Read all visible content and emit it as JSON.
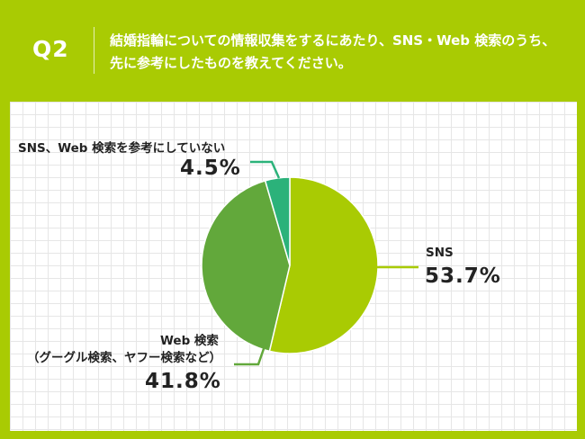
{
  "header": {
    "question_no": "Q2",
    "question_text": "結婚指輪についての情報収集をするにあたり、SNS・Web 検索のうち、先に参考にしたものを教えてください。"
  },
  "chart_data": {
    "type": "pie",
    "title": "",
    "slices": [
      {
        "label": "SNS",
        "value": 53.7,
        "value_label": "53.7%",
        "color": "#a9cb03"
      },
      {
        "label": "Web 検索",
        "sublabel": "（グーグル検索、ヤフー検索など）",
        "value": 41.8,
        "value_label": "41.8%",
        "color": "#62a83b"
      },
      {
        "label": "SNS、Web 検索を参考にしていない",
        "value": 4.5,
        "value_label": "4.5%",
        "color": "#2bb27a"
      }
    ]
  }
}
